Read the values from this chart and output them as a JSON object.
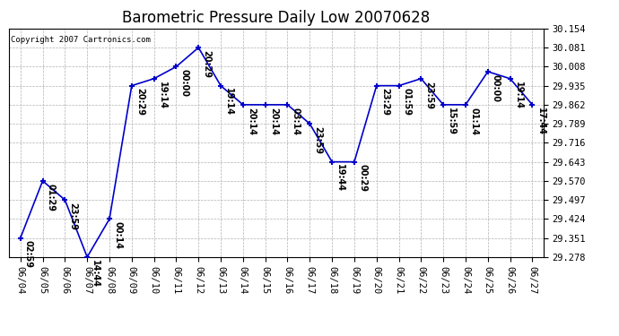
{
  "title": "Barometric Pressure Daily Low 20070628",
  "copyright": "Copyright 2007 Cartronics.com",
  "dates": [
    "06/04",
    "06/05",
    "06/06",
    "06/07",
    "06/08",
    "06/09",
    "06/10",
    "06/11",
    "06/12",
    "06/13",
    "06/14",
    "06/15",
    "06/16",
    "06/17",
    "06/18",
    "06/19",
    "06/20",
    "06/21",
    "06/22",
    "06/23",
    "06/24",
    "06/25",
    "06/26",
    "06/27"
  ],
  "values": [
    29.351,
    29.57,
    29.497,
    29.278,
    29.424,
    29.935,
    29.962,
    30.008,
    30.081,
    29.935,
    29.862,
    29.862,
    29.862,
    29.789,
    29.643,
    29.643,
    29.935,
    29.935,
    29.962,
    29.862,
    29.862,
    29.989,
    29.962,
    29.862
  ],
  "time_labels": [
    "02:59",
    "01:29",
    "23:59",
    "14:44",
    "00:14",
    "20:29",
    "19:14",
    "00:00",
    "20:29",
    "19:14",
    "20:14",
    "20:14",
    "03:14",
    "23:59",
    "19:44",
    "00:29",
    "23:29",
    "01:59",
    "23:59",
    "15:59",
    "01:14",
    "00:00",
    "19:14",
    "17:44"
  ],
  "ylim_min": 29.278,
  "ylim_max": 30.154,
  "yticks": [
    29.278,
    29.351,
    29.424,
    29.497,
    29.57,
    29.643,
    29.716,
    29.789,
    29.862,
    29.935,
    30.008,
    30.081,
    30.154
  ],
  "line_color": "#0000cc",
  "marker_color": "#0000cc",
  "bg_color": "#ffffff",
  "grid_color": "#b0b0b0",
  "title_fontsize": 12,
  "annot_fontsize": 7,
  "tick_fontsize": 7.5,
  "copyright_fontsize": 6.5
}
